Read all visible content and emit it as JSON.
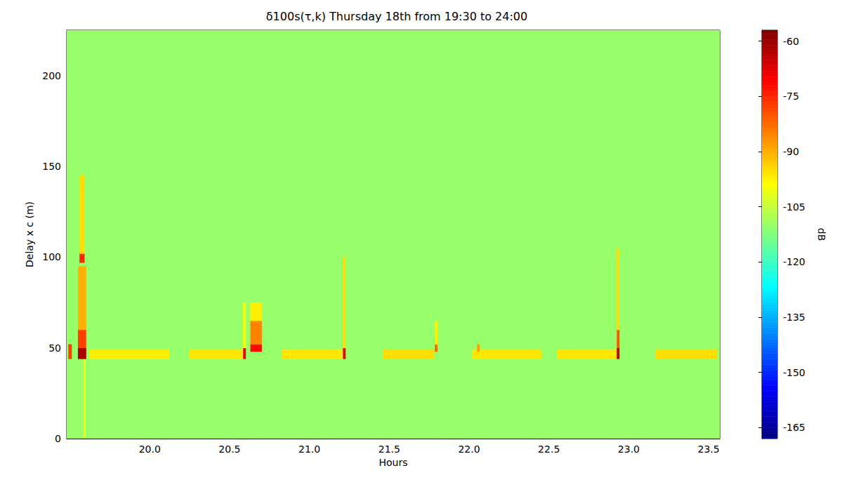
{
  "chart_data": {
    "type": "heatmap",
    "title": "δ100s(τ,k) Thursday 18th from 19:30 to 24:00",
    "x_label": "Hours",
    "y_label": "Delay x c (m)",
    "xlim": [
      19.48,
      23.57
    ],
    "xticks": [
      {
        "value": 20,
        "label": "20.0"
      },
      {
        "value": 20.5,
        "label": "20.5"
      },
      {
        "value": 21,
        "label": "21.0"
      },
      {
        "value": 21.5,
        "label": "21.5"
      },
      {
        "value": 22,
        "label": "22.0"
      },
      {
        "value": 22.5,
        "label": "22.5"
      },
      {
        "value": 23,
        "label": "23.0"
      },
      {
        "value": 23.5,
        "label": "23.5"
      }
    ],
    "ylim": [
      0,
      225
    ],
    "yticks": [
      0,
      50,
      100,
      150,
      200
    ],
    "grid": false,
    "cells": [
      [
        19.48,
        23.57,
        0,
        225,
        -110
      ],
      [
        19.49,
        19.51,
        44,
        52,
        -78
      ],
      [
        19.585,
        19.595,
        0,
        44,
        -100
      ],
      [
        19.55,
        19.6,
        44,
        50,
        -62
      ],
      [
        19.55,
        19.6,
        50,
        60,
        -78
      ],
      [
        19.55,
        19.6,
        60,
        95,
        -90
      ],
      [
        19.56,
        19.59,
        97,
        102,
        -75
      ],
      [
        19.56,
        19.59,
        102,
        145,
        -95
      ],
      [
        19.62,
        20.12,
        44,
        49,
        -97
      ],
      [
        20.25,
        20.58,
        44,
        49,
        -96
      ],
      [
        20.585,
        20.6,
        44,
        50,
        -70
      ],
      [
        20.585,
        20.6,
        50,
        75,
        -98
      ],
      [
        20.63,
        20.7,
        48,
        52,
        -72
      ],
      [
        20.63,
        20.7,
        52,
        65,
        -85
      ],
      [
        20.63,
        20.7,
        65,
        75,
        -97
      ],
      [
        20.83,
        21.2,
        44,
        49,
        -96
      ],
      [
        21.21,
        21.225,
        44,
        50,
        -70
      ],
      [
        21.21,
        21.225,
        50,
        100,
        -95
      ],
      [
        21.46,
        21.78,
        44,
        49,
        -95
      ],
      [
        21.785,
        21.8,
        48,
        52,
        -82
      ],
      [
        21.785,
        21.8,
        52,
        65,
        -97
      ],
      [
        22.02,
        22.45,
        44,
        49,
        -96
      ],
      [
        22.05,
        22.065,
        48,
        52,
        -88
      ],
      [
        22.55,
        22.92,
        44,
        49,
        -96
      ],
      [
        22.925,
        22.94,
        44,
        50,
        -65
      ],
      [
        22.925,
        22.94,
        50,
        60,
        -80
      ],
      [
        22.925,
        22.94,
        60,
        105,
        -95
      ],
      [
        23.17,
        23.55,
        44,
        49,
        -95
      ]
    ],
    "colorbar": {
      "label": "dB",
      "range": [
        -168,
        -57
      ],
      "ticks": [
        -60,
        -75,
        -90,
        -105,
        -120,
        -135,
        -150,
        -165
      ]
    }
  }
}
